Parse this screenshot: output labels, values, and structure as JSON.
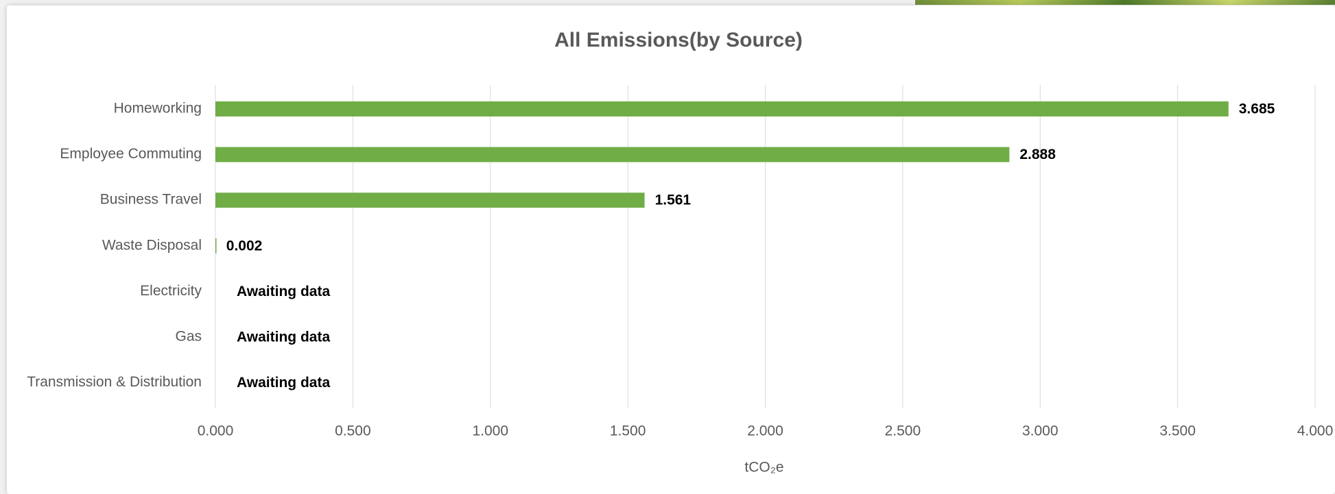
{
  "chart_data": {
    "type": "bar",
    "orientation": "horizontal",
    "title": "All Emissions(by Source)",
    "x_label": "tCO₂e",
    "categories": [
      "Homeworking",
      "Employee Commuting",
      "Business Travel",
      "Waste Disposal",
      "Electricity",
      "Gas",
      "Transmission & Distribution"
    ],
    "values": [
      3.685,
      2.888,
      1.561,
      0.002,
      null,
      null,
      null
    ],
    "value_labels": [
      "3.685",
      "2.888",
      "1.561",
      "0.002",
      "Awaiting data",
      "Awaiting data",
      "Awaiting data"
    ],
    "color": "#70ad47",
    "xlim": [
      0,
      4
    ],
    "xticks": [
      {
        "value": 0,
        "label": "0.000"
      },
      {
        "value": 0.5,
        "label": "0.500"
      },
      {
        "value": 1,
        "label": "1.000"
      },
      {
        "value": 1.5,
        "label": "1.500"
      },
      {
        "value": 2,
        "label": "2.000"
      },
      {
        "value": 2.5,
        "label": "2.500"
      },
      {
        "value": 3,
        "label": "3.000"
      },
      {
        "value": 3.5,
        "label": "3.500"
      },
      {
        "value": 4,
        "label": "4.000"
      }
    ],
    "grid": true
  }
}
